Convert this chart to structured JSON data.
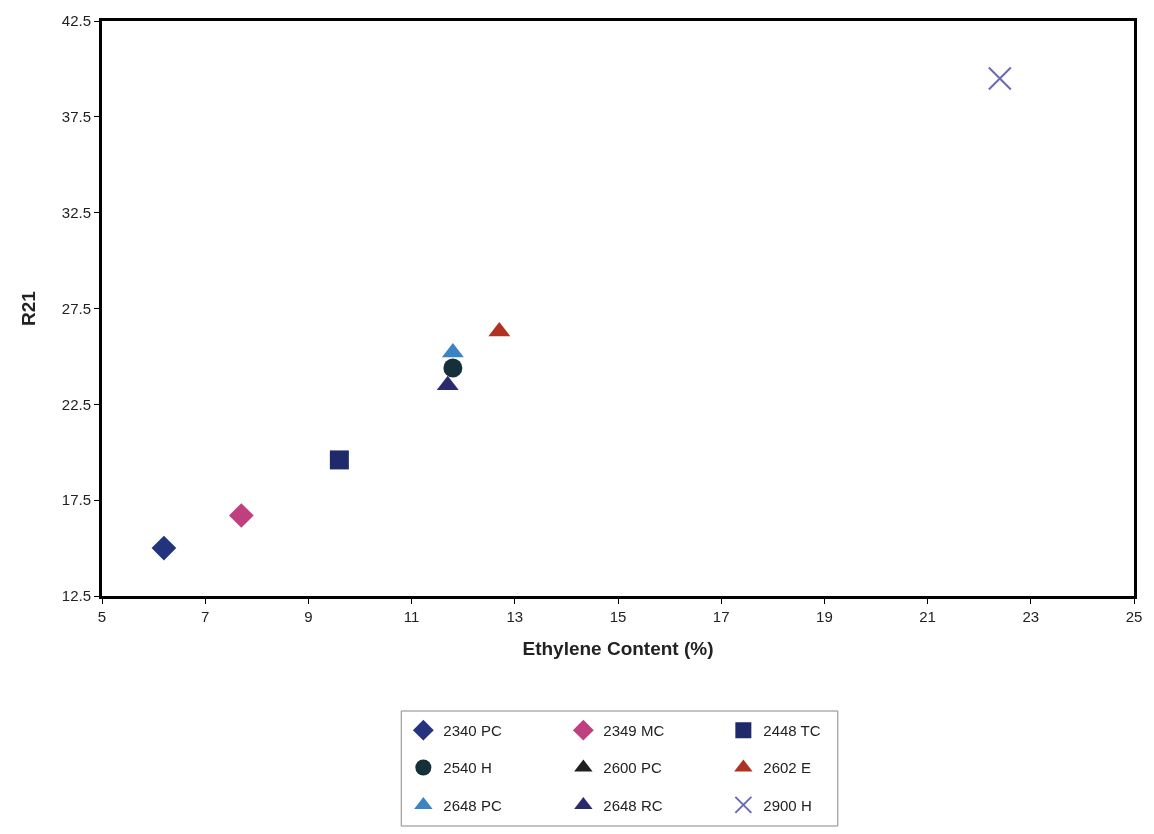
{
  "chart_data": {
    "type": "scatter",
    "xlabel": "Ethylene Content (%)",
    "ylabel": "R21",
    "xlim": [
      5,
      25
    ],
    "xticks": [
      5,
      7,
      9,
      11,
      13,
      15,
      17,
      19,
      21,
      23,
      25
    ],
    "ylim": [
      12.5,
      42.5
    ],
    "yticks": [
      12.5,
      17.5,
      22.5,
      27.5,
      32.5,
      37.5,
      42.5
    ],
    "legend": "bottom",
    "series": [
      {
        "name": "2340 PC",
        "color": "#23337e",
        "marker": "diamond",
        "x": [
          6.2
        ],
        "values": [
          15.0
        ]
      },
      {
        "name": "2349 MC",
        "color": "#c0407f",
        "marker": "diamond",
        "x": [
          7.7
        ],
        "values": [
          16.7
        ]
      },
      {
        "name": "2448 TC",
        "color": "#1f2a6a",
        "marker": "square",
        "x": [
          9.6
        ],
        "values": [
          19.6
        ]
      },
      {
        "name": "2540 H",
        "color": "#16303a",
        "marker": "circle",
        "x": [
          11.8
        ],
        "values": [
          24.4
        ]
      },
      {
        "name": "2600 PC",
        "color": "#202020",
        "marker": "triangle",
        "x": [
          null
        ],
        "values": [
          null
        ]
      },
      {
        "name": "2602 E",
        "color": "#b03222",
        "marker": "triangle",
        "x": [
          12.7
        ],
        "values": [
          26.3
        ]
      },
      {
        "name": "2648 PC",
        "color": "#3a84c4",
        "marker": "triangle",
        "x": [
          11.8
        ],
        "values": [
          25.2
        ]
      },
      {
        "name": "2648 RC",
        "color": "#2a2a6e",
        "marker": "triangle",
        "x": [
          11.7
        ],
        "values": [
          23.5
        ]
      },
      {
        "name": "2900 H",
        "color": "#6a6ab4",
        "marker": "cross",
        "x": [
          22.4
        ],
        "values": [
          39.5
        ]
      }
    ]
  }
}
